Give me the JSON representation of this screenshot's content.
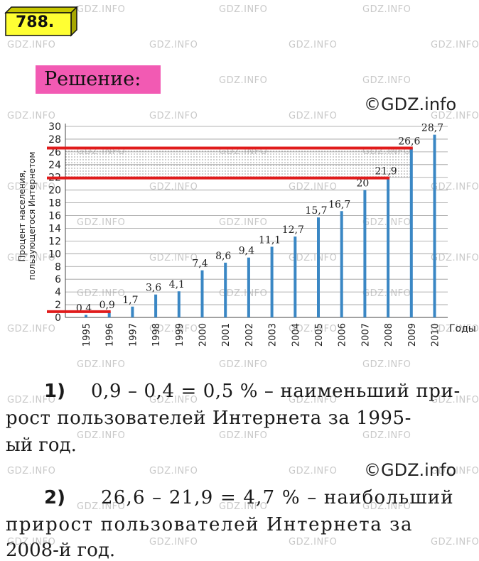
{
  "problem_number": "788.",
  "solution_label": "Решение:",
  "copyright": "©GDZ.info",
  "watermark_text": "GDZ.INFO",
  "chart_data": {
    "type": "bar",
    "ylabel_line1": "Процент населения,",
    "ylabel_line2": "пользующегося Интернетом",
    "xlabel": "Годы",
    "ylim": [
      0,
      30
    ],
    "yticks": [
      0,
      2,
      4,
      6,
      8,
      10,
      12,
      14,
      16,
      18,
      20,
      22,
      24,
      26,
      28,
      30
    ],
    "categories": [
      "1995",
      "1996",
      "1997",
      "1998",
      "1999",
      "2000",
      "2001",
      "2002",
      "2003",
      "2004",
      "2005",
      "2006",
      "2007",
      "2008",
      "2009",
      "2010"
    ],
    "values": [
      0.4,
      0.9,
      1.7,
      3.6,
      4.1,
      7.4,
      8.6,
      9.4,
      11.1,
      12.7,
      15.7,
      16.7,
      20,
      21.9,
      26.6,
      28.7
    ],
    "value_labels": [
      "0,4",
      "0,9",
      "1,7",
      "3,6",
      "4,1",
      "7,4",
      "8,6",
      "9,4",
      "11,1",
      "12,7",
      "15,7",
      "16,7",
      "20",
      "21,9",
      "26,6",
      "28,7"
    ],
    "bar_color": "#3a87c4",
    "highlight_color": "#e01b1b",
    "highlight_levels": [
      0.9,
      21.9,
      26.6
    ]
  },
  "solution": {
    "item1_num": "1)",
    "item1_line1": "0,9 – 0,4 = 0,5 % – наименьший при-",
    "item1_line2": "рост пользователей Интернета за 1995-",
    "item1_line3": "ый год.",
    "item2_num": "2)",
    "item2_line1": "26,6 – 21,9 = 4,7 %  – наибольший",
    "item2_line2": "прирост пользователей Интернета за",
    "item2_line3": "2008-й год."
  }
}
